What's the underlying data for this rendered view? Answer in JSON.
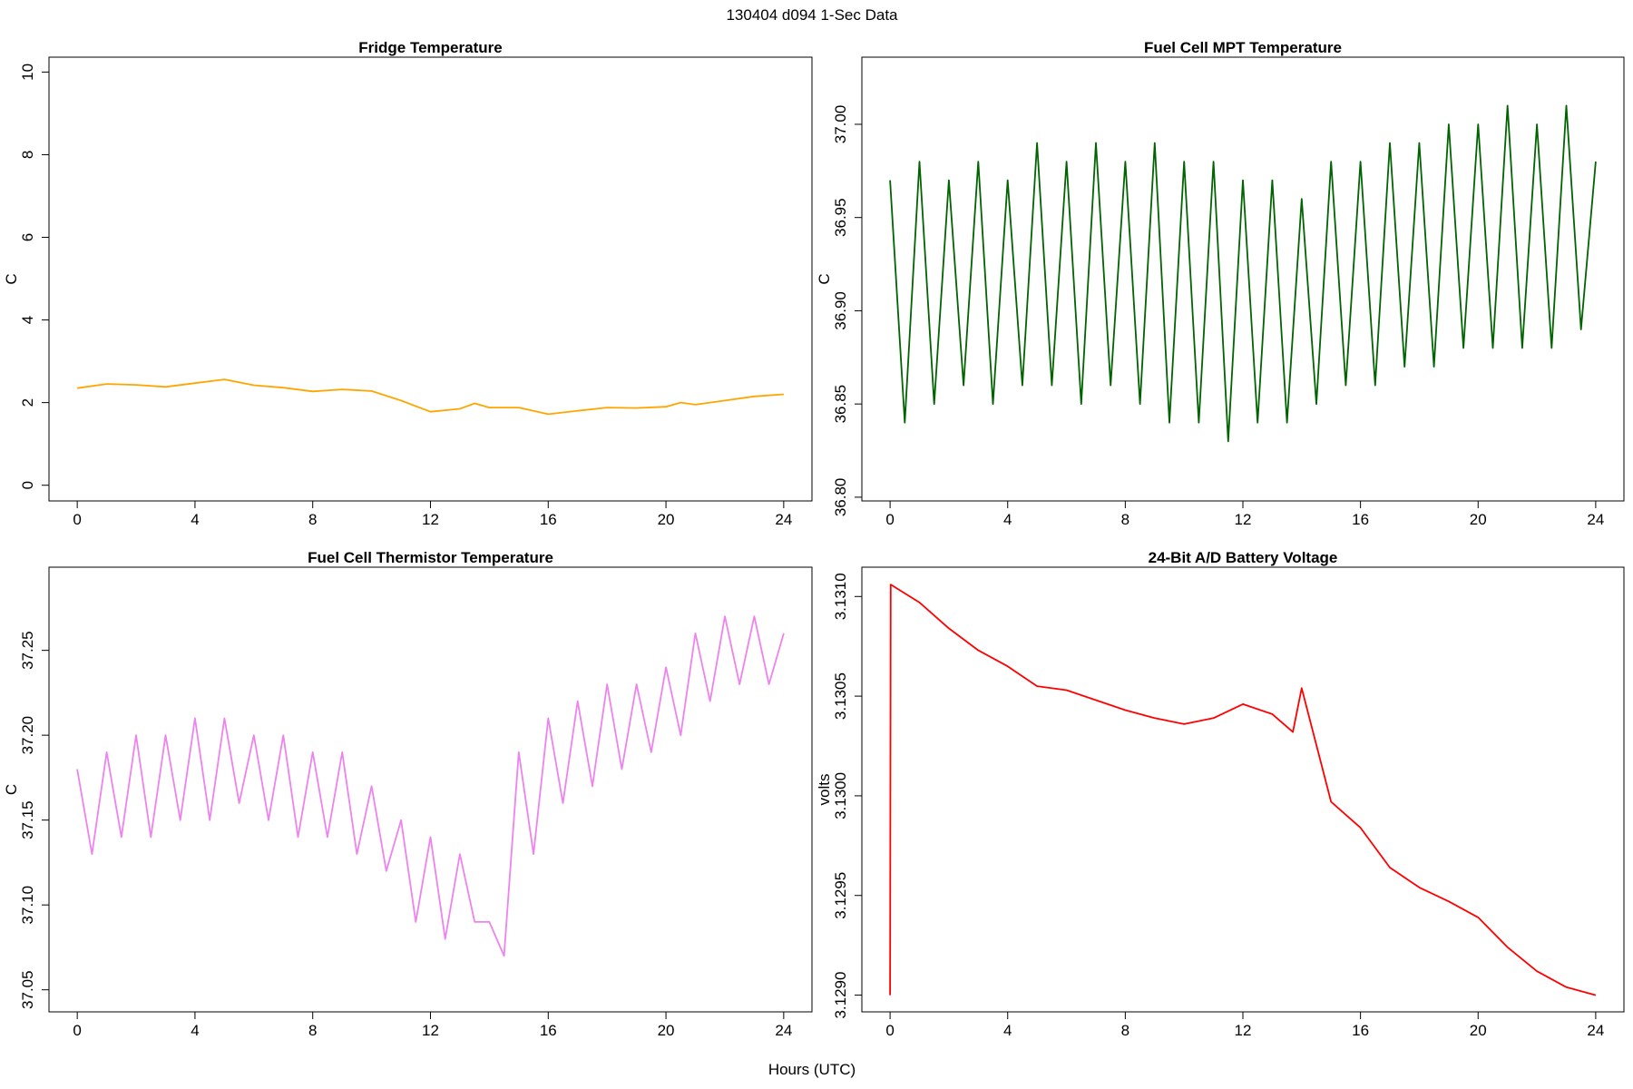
{
  "title": "130404   d094   1-Sec Data",
  "xlabel": "Hours (UTC)",
  "chart_data": [
    {
      "type": "line",
      "title": "Fridge Temperature",
      "ylabel": "C",
      "color": "#ffa500",
      "x": [
        0,
        1,
        2,
        3,
        4,
        5,
        6,
        7,
        8,
        9,
        10,
        11,
        12,
        13,
        13.5,
        14,
        15,
        16,
        17,
        18,
        19,
        20,
        20.5,
        21,
        22,
        23,
        24
      ],
      "values": [
        2.35,
        2.45,
        2.43,
        2.38,
        2.47,
        2.56,
        2.42,
        2.36,
        2.27,
        2.32,
        2.28,
        2.05,
        1.78,
        1.85,
        1.98,
        1.88,
        1.88,
        1.72,
        1.8,
        1.88,
        1.87,
        1.9,
        2.0,
        1.95,
        2.05,
        2.15,
        2.2
      ],
      "xlim": [
        -0.96,
        24.96
      ],
      "xticks": [
        0,
        4,
        8,
        12,
        16,
        20,
        24
      ],
      "ylim": [
        -0.38,
        10.36
      ],
      "yticks": [
        0,
        2,
        4,
        6,
        8,
        10
      ]
    },
    {
      "type": "line",
      "title": "Fuel Cell MPT Temperature",
      "ylabel": "C",
      "color": "#006400",
      "x": [
        0,
        0.5,
        1,
        1.5,
        2,
        2.5,
        3,
        3.5,
        4,
        4.5,
        5,
        5.5,
        6,
        6.5,
        7,
        7.5,
        8,
        8.5,
        9,
        9.5,
        10,
        10.5,
        11,
        11.5,
        12,
        12.5,
        13,
        13.5,
        14,
        14.5,
        15,
        15.5,
        16,
        16.5,
        17,
        17.5,
        18,
        18.5,
        19,
        19.5,
        20,
        20.5,
        21,
        21.5,
        22,
        22.5,
        23,
        23.5,
        24
      ],
      "values": [
        36.97,
        36.84,
        36.98,
        36.85,
        36.97,
        36.86,
        36.98,
        36.85,
        36.97,
        36.86,
        36.99,
        36.86,
        36.98,
        36.85,
        36.99,
        36.86,
        36.98,
        36.85,
        36.99,
        36.84,
        36.98,
        36.84,
        36.98,
        36.83,
        36.97,
        36.84,
        36.97,
        36.84,
        36.96,
        36.85,
        36.98,
        36.86,
        36.98,
        36.86,
        36.99,
        36.87,
        36.99,
        36.87,
        37.0,
        36.88,
        37.0,
        36.88,
        37.01,
        36.88,
        37.0,
        36.88,
        37.01,
        36.89,
        36.98
      ],
      "xlim": [
        -0.96,
        24.96
      ],
      "xticks": [
        0,
        4,
        8,
        12,
        16,
        20,
        24
      ],
      "ylim": [
        36.798,
        37.036
      ],
      "yticks": [
        {
          "value": 36.8,
          "label": "36.80"
        },
        36.85,
        {
          "value": 36.9,
          "label": "36.90"
        },
        36.95,
        {
          "value": 37,
          "label": "37.00"
        }
      ]
    },
    {
      "type": "line",
      "title": "Fuel Cell Thermistor Temperature",
      "ylabel": "C",
      "color": "#ee82ee",
      "x": [
        0,
        0.5,
        1,
        1.5,
        2,
        2.5,
        3,
        3.5,
        4,
        4.5,
        5,
        5.5,
        6,
        6.5,
        7,
        7.5,
        8,
        8.5,
        9,
        9.5,
        10,
        10.5,
        11,
        11.5,
        12,
        12.5,
        13,
        13.5,
        14,
        14.5,
        15,
        15.5,
        16,
        16.5,
        17,
        17.5,
        18,
        18.5,
        19,
        19.5,
        20,
        20.5,
        21,
        21.5,
        22,
        22.5,
        23,
        23.5,
        24
      ],
      "values": [
        37.18,
        37.13,
        37.19,
        37.14,
        37.2,
        37.14,
        37.2,
        37.15,
        37.21,
        37.15,
        37.21,
        37.16,
        37.2,
        37.15,
        37.2,
        37.14,
        37.19,
        37.14,
        37.19,
        37.13,
        37.17,
        37.12,
        37.15,
        37.09,
        37.14,
        37.08,
        37.13,
        37.09,
        37.09,
        37.07,
        37.19,
        37.13,
        37.21,
        37.16,
        37.22,
        37.17,
        37.23,
        37.18,
        37.23,
        37.19,
        37.24,
        37.2,
        37.26,
        37.22,
        37.27,
        37.23,
        37.27,
        37.23,
        37.26
      ],
      "xlim": [
        -0.96,
        24.96
      ],
      "xticks": [
        0,
        4,
        8,
        12,
        16,
        20,
        24
      ],
      "ylim": [
        37.037,
        37.299
      ],
      "yticks": [
        37.05,
        {
          "value": 37.1,
          "label": "37.10"
        },
        37.15,
        {
          "value": 37.2,
          "label": "37.20"
        },
        37.25
      ]
    },
    {
      "type": "line",
      "title": "24-Bit A/D Battery Voltage",
      "ylabel": "volts",
      "color": "#ff0000",
      "x": [
        0,
        0.02,
        1,
        2,
        3,
        4,
        5,
        6,
        7,
        8,
        9,
        10,
        11,
        12,
        13,
        13.7,
        14,
        15,
        16,
        17,
        18,
        19,
        20,
        21,
        22,
        23,
        24
      ],
      "values": [
        3.129,
        3.13106,
        3.13097,
        3.13084,
        3.13073,
        3.13065,
        3.13055,
        3.13053,
        3.13048,
        3.13043,
        3.13039,
        3.13036,
        3.13039,
        3.13046,
        3.13041,
        3.13032,
        3.13054,
        3.12997,
        3.12984,
        3.12964,
        3.12954,
        3.12947,
        3.12939,
        3.12924,
        3.12912,
        3.12904,
        3.129
      ],
      "xlim": [
        -0.96,
        24.96
      ],
      "xticks": [
        0,
        4,
        8,
        12,
        16,
        20,
        24
      ],
      "ylim": [
        3.128916,
        3.131147
      ],
      "yticks": [
        {
          "value": 3.129,
          "label": "3.1290"
        },
        3.1295,
        {
          "value": 3.13,
          "label": "3.1300"
        },
        3.1305,
        {
          "value": 3.131,
          "label": "3.1310"
        }
      ]
    }
  ]
}
